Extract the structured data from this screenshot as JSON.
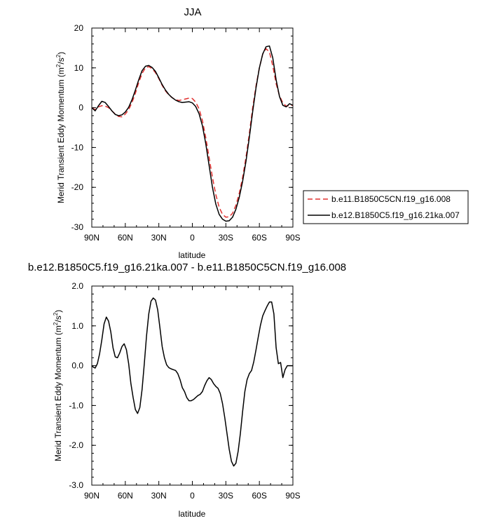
{
  "chart_data": [
    {
      "type": "line",
      "title": "JJA",
      "xlabel": "latitude",
      "ylabel": "Merid Transient Eddy Momentum (m",
      "ylabel_sup": "2",
      "ylabel_mid": "/s",
      "ylabel_sup2": "2",
      "ylabel_end": ")",
      "xlim": [
        90,
        -90
      ],
      "ylim": [
        -30,
        20
      ],
      "x_ticks": [
        90,
        60,
        30,
        0,
        -30,
        -60,
        -90
      ],
      "x_tick_labels": [
        "90N",
        "60N",
        "30N",
        "0",
        "30S",
        "60S",
        "90S"
      ],
      "y_ticks": [
        20,
        10,
        0,
        -10,
        -20,
        -30
      ],
      "y_tick_labels": [
        "20",
        "10",
        "0",
        "-10",
        "-20",
        "-30"
      ],
      "legend_position": "right",
      "series": [
        {
          "name": "b.e11.B1850C5CN.f19_g16.008",
          "color": "#e0302f",
          "dash": "dashed",
          "x": [
            90,
            87,
            84,
            81,
            78,
            75,
            72,
            69,
            66,
            63,
            60,
            57,
            54,
            51,
            48,
            45,
            42,
            39,
            36,
            33,
            30,
            27,
            24,
            21,
            18,
            15,
            12,
            9,
            6,
            3,
            0,
            -3,
            -6,
            -9,
            -12,
            -15,
            -18,
            -21,
            -24,
            -27,
            -30,
            -33,
            -36,
            -39,
            -42,
            -45,
            -48,
            -51,
            -54,
            -57,
            -60,
            -63,
            -66,
            -69,
            -72,
            -75,
            -78,
            -81,
            -84,
            -87,
            -90
          ],
          "y": [
            0,
            -0.5,
            0.2,
            0.5,
            0.4,
            0,
            -0.8,
            -1.6,
            -2.2,
            -2.3,
            -1.6,
            -0.5,
            1.3,
            3.6,
            6.3,
            8.6,
            10,
            10.3,
            9.8,
            8.8,
            7.3,
            5.6,
            4.2,
            3.2,
            2.5,
            2.0,
            1.8,
            2.0,
            2.2,
            2.4,
            2.3,
            1.4,
            -0.3,
            -3.2,
            -7.5,
            -12.5,
            -17.5,
            -21.8,
            -25,
            -26.8,
            -27.5,
            -27.4,
            -26.5,
            -24.5,
            -21.5,
            -17.5,
            -12.5,
            -6.5,
            0,
            5.5,
            10,
            13.5,
            14.8,
            14,
            10.5,
            6,
            3,
            1.2,
            0.4,
            0.5,
            0.6
          ]
        },
        {
          "name": "b.e12.B1850C5.f19_g16.21ka.007",
          "color": "#000000",
          "dash": "solid",
          "x": [
            90,
            87,
            84,
            81,
            78,
            75,
            72,
            69,
            66,
            63,
            60,
            57,
            54,
            51,
            48,
            45,
            42,
            39,
            36,
            33,
            30,
            27,
            24,
            21,
            18,
            15,
            12,
            9,
            6,
            3,
            0,
            -3,
            -6,
            -9,
            -12,
            -15,
            -18,
            -21,
            -24,
            -27,
            -30,
            -33,
            -36,
            -39,
            -42,
            -45,
            -48,
            -51,
            -54,
            -57,
            -60,
            -63,
            -66,
            -69,
            -72,
            -75,
            -78,
            -81,
            -84,
            -87,
            -90
          ],
          "y": [
            0,
            -0.8,
            0.5,
            1.6,
            1.3,
            0.3,
            -0.8,
            -1.7,
            -2.0,
            -1.8,
            -1.1,
            0.1,
            2.0,
            4.4,
            7.0,
            9.3,
            10.4,
            10.6,
            10.1,
            9.1,
            7.5,
            5.8,
            4.4,
            3.3,
            2.5,
            1.9,
            1.5,
            1.3,
            1.4,
            1.5,
            1.2,
            0.3,
            -1.5,
            -4.5,
            -9,
            -14.5,
            -20,
            -24.2,
            -26.8,
            -28,
            -28.5,
            -28.4,
            -27.5,
            -25.5,
            -22.5,
            -18.5,
            -13.5,
            -7.5,
            -1,
            5,
            10,
            13.5,
            15.3,
            15.5,
            12.5,
            7,
            2.8,
            0.6,
            0.2,
            1.0,
            0.6
          ]
        }
      ]
    },
    {
      "type": "line",
      "title": "b.e12.B1850C5.f19_g16.21ka.007 - b.e11.B1850C5CN.f19_g16.008",
      "xlabel": "latitude",
      "ylabel": "Merid Transient Eddy Momentum (m",
      "ylabel_sup": "2",
      "ylabel_mid": "/s",
      "ylabel_sup2": "2",
      "ylabel_end": ")",
      "xlim": [
        90,
        -90
      ],
      "ylim": [
        -3.0,
        2.0
      ],
      "x_ticks": [
        90,
        60,
        30,
        0,
        -30,
        -60,
        -90
      ],
      "x_tick_labels": [
        "90N",
        "60N",
        "30N",
        "0",
        "30S",
        "60S",
        "90S"
      ],
      "y_ticks": [
        2.0,
        1.0,
        0.0,
        -1.0,
        -2.0,
        -3.0
      ],
      "y_tick_labels": [
        "2.0",
        "1.0",
        "0.0",
        "-1.0",
        "-2.0",
        "-3.0"
      ],
      "series": [
        {
          "color": "#000000",
          "dash": "solid",
          "x": [
            90,
            89,
            87,
            85,
            83,
            81,
            79,
            77,
            75,
            73,
            71,
            69,
            67,
            65,
            63,
            61,
            59,
            57,
            55,
            53,
            51,
            49,
            47,
            45,
            43,
            41,
            39,
            37,
            35,
            33,
            31,
            29,
            27,
            25,
            23,
            21,
            19,
            17,
            15,
            13,
            11,
            9,
            7,
            5,
            3,
            1,
            -1,
            -3,
            -5,
            -7,
            -9,
            -11,
            -13,
            -15,
            -17,
            -19,
            -21,
            -23,
            -25,
            -27,
            -29,
            -31,
            -33,
            -35,
            -37,
            -39,
            -41,
            -43,
            -45,
            -47,
            -49,
            -51,
            -53,
            -55,
            -57,
            -59,
            -61,
            -63,
            -65,
            -67,
            -69,
            -71,
            -73,
            -75,
            -77,
            -79,
            -81,
            -83,
            -85,
            -87,
            -89,
            -90
          ],
          "y": [
            0,
            -0.03,
            -0.06,
            0.05,
            0.3,
            0.65,
            1.05,
            1.22,
            1.12,
            0.85,
            0.45,
            0.22,
            0.2,
            0.32,
            0.48,
            0.55,
            0.4,
            0.05,
            -0.45,
            -0.8,
            -1.1,
            -1.2,
            -1.05,
            -0.6,
            0.05,
            0.75,
            1.3,
            1.62,
            1.7,
            1.65,
            1.4,
            0.95,
            0.48,
            0.2,
            0.02,
            -0.05,
            -0.08,
            -0.1,
            -0.12,
            -0.2,
            -0.35,
            -0.55,
            -0.65,
            -0.8,
            -0.88,
            -0.88,
            -0.85,
            -0.8,
            -0.75,
            -0.72,
            -0.65,
            -0.5,
            -0.38,
            -0.3,
            -0.35,
            -0.45,
            -0.52,
            -0.57,
            -0.7,
            -0.95,
            -1.3,
            -1.7,
            -2.1,
            -2.4,
            -2.52,
            -2.45,
            -2.15,
            -1.7,
            -1.15,
            -0.65,
            -0.35,
            -0.2,
            -0.12,
            0.1,
            0.4,
            0.72,
            1.02,
            1.25,
            1.38,
            1.5,
            1.6,
            1.6,
            1.3,
            0.45,
            0.05,
            0.08,
            -0.3,
            -0.1,
            0,
            0,
            0,
            0
          ]
        }
      ]
    }
  ]
}
